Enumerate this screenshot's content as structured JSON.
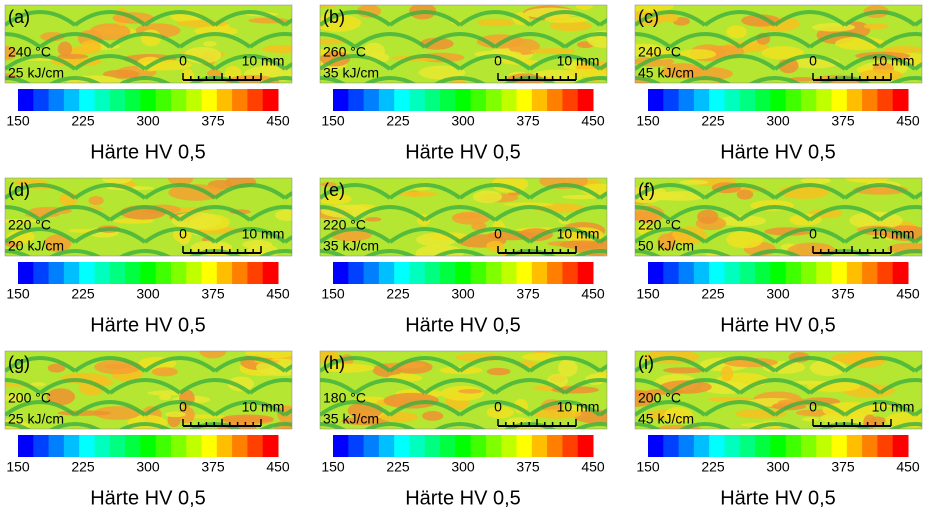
{
  "panels": [
    {
      "label": "(a)",
      "temperature": "240 °C",
      "energy": "25 kJ/cm",
      "scale_start": "0",
      "scale_end": "10 mm",
      "colorbar_ticks": [
        "150",
        "225",
        "300",
        "375",
        "450"
      ],
      "colorbar_label": "Härte HV 0,5"
    },
    {
      "label": "(b)",
      "temperature": "260 °C",
      "energy": "35 kJ/cm",
      "scale_start": "0",
      "scale_end": "10 mm",
      "colorbar_ticks": [
        "150",
        "225",
        "300",
        "375",
        "450"
      ],
      "colorbar_label": "Härte HV 0,5"
    },
    {
      "label": "(c)",
      "temperature": "240 °C",
      "energy": "45 kJ/cm",
      "scale_start": "0",
      "scale_end": "10 mm",
      "colorbar_ticks": [
        "150",
        "225",
        "300",
        "375",
        "450"
      ],
      "colorbar_label": "Härte HV 0,5"
    },
    {
      "label": "(d)",
      "temperature": "220 °C",
      "energy": "20 kJ/cm",
      "scale_start": "0",
      "scale_end": "10 mm",
      "colorbar_ticks": [
        "150",
        "225",
        "300",
        "375",
        "450"
      ],
      "colorbar_label": "Härte HV 0,5"
    },
    {
      "label": "(e)",
      "temperature": "220 °C",
      "energy": "35 kJ/cm",
      "scale_start": "0",
      "scale_end": "10 mm",
      "colorbar_ticks": [
        "150",
        "225",
        "300",
        "375",
        "450"
      ],
      "colorbar_label": "Härte HV 0,5"
    },
    {
      "label": "(f)",
      "temperature": "220 °C",
      "energy": "50 kJ/cm",
      "scale_start": "0",
      "scale_end": "10 mm",
      "colorbar_ticks": [
        "150",
        "225",
        "300",
        "375",
        "450"
      ],
      "colorbar_label": "Härte HV 0,5"
    },
    {
      "label": "(g)",
      "temperature": "200 °C",
      "energy": "25 kJ/cm",
      "scale_start": "0",
      "scale_end": "10 mm",
      "colorbar_ticks": [
        "150",
        "225",
        "300",
        "375",
        "450"
      ],
      "colorbar_label": "Härte HV 0,5"
    },
    {
      "label": "(h)",
      "temperature": "180 °C",
      "energy": "35 kJ/cm",
      "scale_start": "0",
      "scale_end": "10 mm",
      "colorbar_ticks": [
        "150",
        "225",
        "300",
        "375",
        "450"
      ],
      "colorbar_label": "Härte HV 0,5"
    },
    {
      "label": "(i)",
      "temperature": "200 °C",
      "energy": "45 kJ/cm",
      "scale_start": "0",
      "scale_end": "10 mm",
      "colorbar_ticks": [
        "150",
        "225",
        "300",
        "375",
        "450"
      ],
      "colorbar_label": "Härte HV 0,5"
    }
  ]
}
